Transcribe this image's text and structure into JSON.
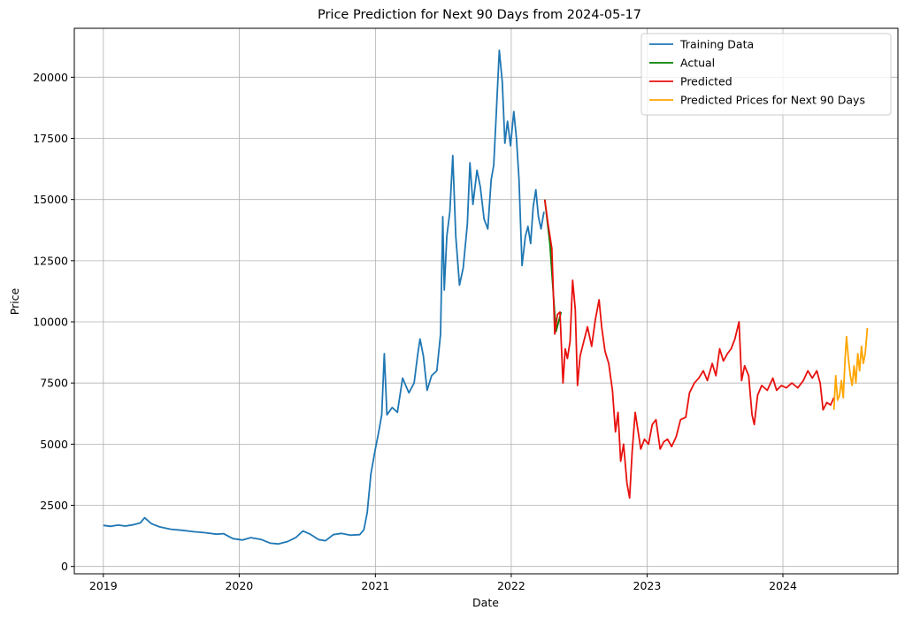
{
  "chart_data": {
    "type": "line",
    "title": "Price Prediction for Next 90 Days from 2024-05-17",
    "xlabel": "Date",
    "ylabel": "Price",
    "xlim": [
      "2018-10-15",
      "2024-11-05"
    ],
    "ylim": [
      -300,
      22000
    ],
    "x_ticks": [
      "2019",
      "2020",
      "2021",
      "2022",
      "2023",
      "2024"
    ],
    "y_ticks": [
      0,
      2500,
      5000,
      7500,
      10000,
      12500,
      15000,
      17500,
      20000
    ],
    "grid": true,
    "legend_position": "top-right",
    "series": [
      {
        "name": "Training Data",
        "color": "#1f77b4",
        "points": [
          [
            "2019-01-01",
            1680
          ],
          [
            "2019-01-20",
            1640
          ],
          [
            "2019-02-10",
            1690
          ],
          [
            "2019-03-01",
            1650
          ],
          [
            "2019-03-20",
            1700
          ],
          [
            "2019-04-10",
            1780
          ],
          [
            "2019-04-22",
            1990
          ],
          [
            "2019-05-10",
            1750
          ],
          [
            "2019-06-01",
            1620
          ],
          [
            "2019-07-01",
            1520
          ],
          [
            "2019-08-01",
            1480
          ],
          [
            "2019-09-01",
            1420
          ],
          [
            "2019-10-01",
            1380
          ],
          [
            "2019-11-01",
            1320
          ],
          [
            "2019-11-20",
            1340
          ],
          [
            "2019-12-15",
            1140
          ],
          [
            "2020-01-10",
            1080
          ],
          [
            "2020-02-01",
            1180
          ],
          [
            "2020-03-01",
            1100
          ],
          [
            "2020-03-25",
            950
          ],
          [
            "2020-04-15",
            920
          ],
          [
            "2020-05-10",
            1020
          ],
          [
            "2020-06-01",
            1180
          ],
          [
            "2020-06-20",
            1450
          ],
          [
            "2020-07-10",
            1320
          ],
          [
            "2020-08-01",
            1100
          ],
          [
            "2020-08-20",
            1050
          ],
          [
            "2020-09-10",
            1300
          ],
          [
            "2020-10-01",
            1350
          ],
          [
            "2020-10-25",
            1280
          ],
          [
            "2020-11-20",
            1300
          ],
          [
            "2020-12-01",
            1500
          ],
          [
            "2020-12-10",
            2200
          ],
          [
            "2020-12-20",
            3800
          ],
          [
            "2021-01-01",
            4800
          ],
          [
            "2021-01-10",
            5500
          ],
          [
            "2021-01-18",
            6200
          ],
          [
            "2021-01-25",
            8700
          ],
          [
            "2021-02-01",
            6200
          ],
          [
            "2021-02-15",
            6500
          ],
          [
            "2021-03-01",
            6300
          ],
          [
            "2021-03-15",
            7700
          ],
          [
            "2021-04-01",
            7100
          ],
          [
            "2021-04-15",
            7500
          ],
          [
            "2021-04-25",
            8700
          ],
          [
            "2021-05-01",
            9300
          ],
          [
            "2021-05-10",
            8600
          ],
          [
            "2021-05-20",
            7200
          ],
          [
            "2021-06-01",
            7800
          ],
          [
            "2021-06-15",
            8000
          ],
          [
            "2021-06-25",
            9500
          ],
          [
            "2021-07-01",
            14300
          ],
          [
            "2021-07-05",
            11300
          ],
          [
            "2021-07-12",
            13500
          ],
          [
            "2021-07-20",
            14500
          ],
          [
            "2021-07-28",
            16800
          ],
          [
            "2021-08-05",
            13500
          ],
          [
            "2021-08-15",
            11500
          ],
          [
            "2021-08-25",
            12200
          ],
          [
            "2021-09-05",
            14000
          ],
          [
            "2021-09-12",
            16500
          ],
          [
            "2021-09-20",
            14800
          ],
          [
            "2021-10-01",
            16200
          ],
          [
            "2021-10-10",
            15500
          ],
          [
            "2021-10-20",
            14200
          ],
          [
            "2021-10-30",
            13800
          ],
          [
            "2021-11-08",
            15800
          ],
          [
            "2021-11-15",
            16400
          ],
          [
            "2021-11-22",
            18600
          ],
          [
            "2021-11-30",
            21100
          ],
          [
            "2021-12-08",
            19800
          ],
          [
            "2021-12-15",
            17300
          ],
          [
            "2021-12-22",
            18200
          ],
          [
            "2021-12-30",
            17200
          ],
          [
            "2022-01-08",
            18600
          ],
          [
            "2022-01-15",
            17500
          ],
          [
            "2022-01-22",
            15800
          ],
          [
            "2022-01-30",
            12300
          ],
          [
            "2022-02-08",
            13500
          ],
          [
            "2022-02-15",
            13900
          ],
          [
            "2022-02-22",
            13200
          ],
          [
            "2022-03-01",
            14700
          ],
          [
            "2022-03-08",
            15400
          ],
          [
            "2022-03-15",
            14300
          ],
          [
            "2022-03-22",
            13800
          ],
          [
            "2022-03-30",
            14500
          ]
        ]
      },
      {
        "name": "Actual",
        "color": "#008000",
        "points": [
          [
            "2022-04-01",
            15000
          ],
          [
            "2022-04-15",
            13200
          ],
          [
            "2022-05-01",
            9600
          ],
          [
            "2022-05-15",
            10400
          ]
        ]
      },
      {
        "name": "Predicted",
        "color": "#e8110e",
        "points": [
          [
            "2022-04-01",
            15000
          ],
          [
            "2022-04-10",
            14000
          ],
          [
            "2022-04-20",
            13000
          ],
          [
            "2022-04-28",
            9500
          ],
          [
            "2022-05-05",
            10300
          ],
          [
            "2022-05-12",
            10400
          ],
          [
            "2022-05-20",
            7500
          ],
          [
            "2022-05-26",
            8900
          ],
          [
            "2022-06-01",
            8500
          ],
          [
            "2022-06-08",
            9200
          ],
          [
            "2022-06-15",
            11700
          ],
          [
            "2022-06-22",
            10500
          ],
          [
            "2022-06-28",
            7400
          ],
          [
            "2022-07-05",
            8600
          ],
          [
            "2022-07-15",
            9200
          ],
          [
            "2022-07-25",
            9800
          ],
          [
            "2022-08-05",
            9000
          ],
          [
            "2022-08-15",
            10100
          ],
          [
            "2022-08-25",
            10900
          ],
          [
            "2022-09-01",
            9800
          ],
          [
            "2022-09-10",
            8800
          ],
          [
            "2022-09-20",
            8300
          ],
          [
            "2022-09-30",
            7200
          ],
          [
            "2022-10-08",
            5500
          ],
          [
            "2022-10-15",
            6300
          ],
          [
            "2022-10-22",
            4300
          ],
          [
            "2022-10-30",
            5000
          ],
          [
            "2022-11-08",
            3400
          ],
          [
            "2022-11-15",
            2800
          ],
          [
            "2022-11-22",
            4700
          ],
          [
            "2022-11-30",
            6300
          ],
          [
            "2022-12-08",
            5500
          ],
          [
            "2022-12-15",
            4800
          ],
          [
            "2022-12-25",
            5200
          ],
          [
            "2023-01-05",
            5000
          ],
          [
            "2023-01-15",
            5800
          ],
          [
            "2023-01-25",
            6000
          ],
          [
            "2023-02-05",
            4800
          ],
          [
            "2023-02-15",
            5100
          ],
          [
            "2023-02-25",
            5200
          ],
          [
            "2023-03-08",
            4900
          ],
          [
            "2023-03-20",
            5300
          ],
          [
            "2023-04-01",
            6000
          ],
          [
            "2023-04-15",
            6100
          ],
          [
            "2023-04-25",
            7100
          ],
          [
            "2023-05-08",
            7500
          ],
          [
            "2023-05-20",
            7700
          ],
          [
            "2023-06-01",
            8000
          ],
          [
            "2023-06-12",
            7600
          ],
          [
            "2023-06-25",
            8300
          ],
          [
            "2023-07-05",
            7800
          ],
          [
            "2023-07-15",
            8900
          ],
          [
            "2023-07-25",
            8400
          ],
          [
            "2023-08-05",
            8700
          ],
          [
            "2023-08-15",
            8900
          ],
          [
            "2023-08-25",
            9300
          ],
          [
            "2023-09-05",
            10000
          ],
          [
            "2023-09-12",
            7600
          ],
          [
            "2023-09-20",
            8200
          ],
          [
            "2023-10-01",
            7800
          ],
          [
            "2023-10-10",
            6200
          ],
          [
            "2023-10-16",
            5800
          ],
          [
            "2023-10-25",
            7000
          ],
          [
            "2023-11-05",
            7400
          ],
          [
            "2023-11-20",
            7200
          ],
          [
            "2023-12-05",
            7700
          ],
          [
            "2023-12-15",
            7200
          ],
          [
            "2023-12-28",
            7400
          ],
          [
            "2024-01-10",
            7300
          ],
          [
            "2024-01-25",
            7500
          ],
          [
            "2024-02-10",
            7300
          ],
          [
            "2024-02-25",
            7600
          ],
          [
            "2024-03-08",
            8000
          ],
          [
            "2024-03-20",
            7700
          ],
          [
            "2024-04-01",
            8000
          ],
          [
            "2024-04-10",
            7500
          ],
          [
            "2024-04-18",
            6400
          ],
          [
            "2024-04-28",
            6700
          ],
          [
            "2024-05-08",
            6600
          ],
          [
            "2024-05-17",
            6900
          ]
        ]
      },
      {
        "name": "Predicted Prices for Next 90 Days",
        "color": "#ffa500",
        "points": [
          [
            "2024-05-17",
            6400
          ],
          [
            "2024-05-22",
            7800
          ],
          [
            "2024-05-27",
            6800
          ],
          [
            "2024-06-01",
            7000
          ],
          [
            "2024-06-06",
            7600
          ],
          [
            "2024-06-11",
            6900
          ],
          [
            "2024-06-16",
            8500
          ],
          [
            "2024-06-20",
            9400
          ],
          [
            "2024-06-25",
            8500
          ],
          [
            "2024-06-30",
            7800
          ],
          [
            "2024-07-05",
            7400
          ],
          [
            "2024-07-10",
            8200
          ],
          [
            "2024-07-15",
            7500
          ],
          [
            "2024-07-20",
            8700
          ],
          [
            "2024-07-25",
            8000
          ],
          [
            "2024-07-30",
            9000
          ],
          [
            "2024-08-04",
            8300
          ],
          [
            "2024-08-09",
            8700
          ],
          [
            "2024-08-15",
            9750
          ]
        ]
      }
    ]
  }
}
